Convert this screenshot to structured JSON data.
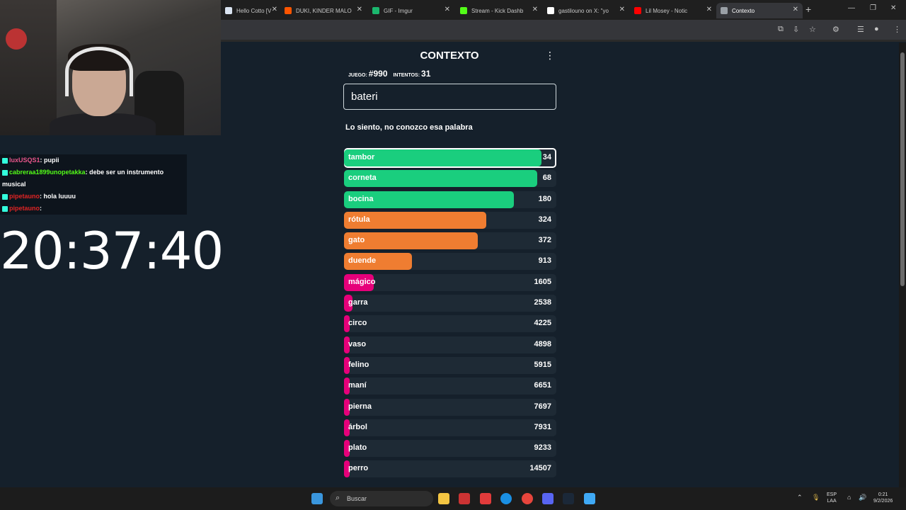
{
  "browser": {
    "tabs": [
      {
        "label": "Hello Cotto [V",
        "color": "#d9e3f0"
      },
      {
        "label": "DUKI, KINDER MALO",
        "color": "#ff5500"
      },
      {
        "label": "GIF - Imgur",
        "color": "#1bb76e"
      },
      {
        "label": "Stream - Kick Dashb",
        "color": "#53fc18"
      },
      {
        "label": "gastilouno on X: \"yo",
        "color": "#ffffff"
      },
      {
        "label": "Lil Mosey - Notic",
        "color": "#ff0000"
      },
      {
        "label": "Contexto",
        "color": "#9aa0a6"
      }
    ]
  },
  "overlay": {
    "chat": [
      {
        "user": "luxUSQS1",
        "text": ": pupii",
        "cls": "u1"
      },
      {
        "user": "cabreraa1899unopetakka",
        "text": ": debe ser un instrumento musical",
        "cls": "u2"
      },
      {
        "user": "pipetauno",
        "text": ": hola luuuu",
        "cls": "u3"
      },
      {
        "user": "pipetauno",
        "text": ":",
        "cls": "u3"
      }
    ],
    "clock": "20:37:40"
  },
  "game": {
    "title": "CONTEXTO",
    "game_label": "JUEGO:",
    "game_num": "#990",
    "tries_label": "INTENTOS:",
    "tries_num": "31",
    "input_value": "bateri",
    "message": "Lo siento, no conozco esa palabra",
    "guesses": [
      {
        "word": "tambor",
        "rank": "34",
        "color": "#1ace7e",
        "fill": 0.93,
        "hl": true
      },
      {
        "word": "corneta",
        "rank": "68",
        "color": "#1ace7e",
        "fill": 0.91
      },
      {
        "word": "bocina",
        "rank": "180",
        "color": "#1ace7e",
        "fill": 0.8
      },
      {
        "word": "rótula",
        "rank": "324",
        "color": "#ef7d31",
        "fill": 0.67
      },
      {
        "word": "gato",
        "rank": "372",
        "color": "#ef7d31",
        "fill": 0.63
      },
      {
        "word": "duende",
        "rank": "913",
        "color": "#ef7d31",
        "fill": 0.32
      },
      {
        "word": "mágico",
        "rank": "1605",
        "color": "#e6007a",
        "fill": 0.14
      },
      {
        "word": "garra",
        "rank": "2538",
        "color": "#e6007a",
        "fill": 0.04
      },
      {
        "word": "circo",
        "rank": "4225",
        "color": "#e6007a",
        "fill": 0.01
      },
      {
        "word": "vaso",
        "rank": "4898",
        "color": "#e6007a",
        "fill": 0.01
      },
      {
        "word": "felino",
        "rank": "5915",
        "color": "#e6007a",
        "fill": 0.01
      },
      {
        "word": "maní",
        "rank": "6651",
        "color": "#e6007a",
        "fill": 0.01
      },
      {
        "word": "pierna",
        "rank": "7697",
        "color": "#e6007a",
        "fill": 0.01
      },
      {
        "word": "árbol",
        "rank": "7931",
        "color": "#e6007a",
        "fill": 0.01
      },
      {
        "word": "plato",
        "rank": "9233",
        "color": "#e6007a",
        "fill": 0.01
      },
      {
        "word": "perro",
        "rank": "14507",
        "color": "#e6007a",
        "fill": 0.01
      }
    ]
  },
  "taskbar": {
    "search_placeholder": "Buscar",
    "lang_top": "ESP",
    "lang_bottom": "LAA",
    "time": "0:21",
    "date": "9/2/2026"
  }
}
